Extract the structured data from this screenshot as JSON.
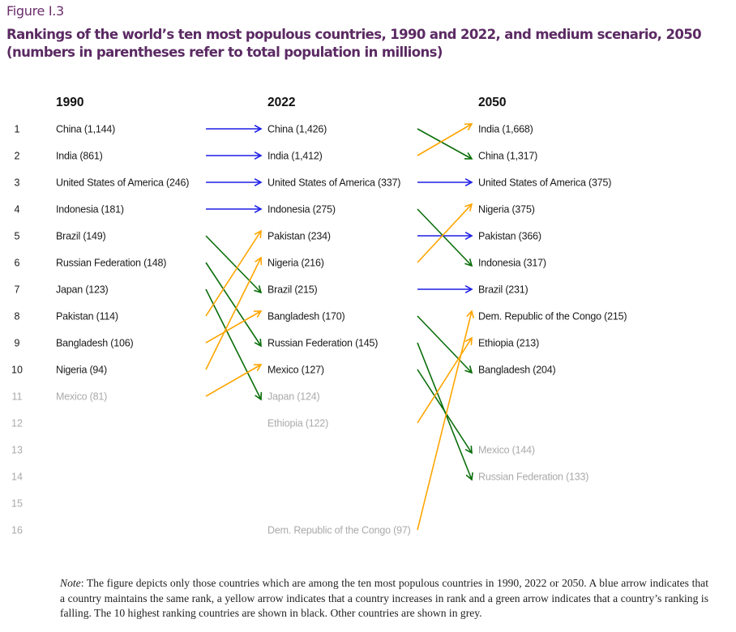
{
  "figure_label": "Figure I.3",
  "title": "Rankings of the world’s ten most populous countries, 1990 and 2022, and medium scenario, 2050 (numbers in parentheses refer to total population in millions)",
  "note": {
    "label": "Note",
    "text": ":  The figure depicts only those countries which are among the ten most populous countries in 1990, 2022 or 2050. A blue arrow indicates that a country maintains the same rank, a yellow arrow indicates that a country increases in rank and a green arrow indicates that a country’s ranking is falling. The 10 highest ranking countries are shown in black. Other countries are shown in grey."
  },
  "colors": {
    "same": "#1f1fe6",
    "up": "#ffa500",
    "down": "#0a6e0a",
    "top10_text": "#1a1a1a",
    "other_text": "#aaaaaa"
  },
  "chart_data": {
    "type": "slope-ranking",
    "title": "Rankings of the world’s ten most populous countries, 1990 and 2022, and medium scenario, 2050",
    "unit": "millions",
    "ranks": [
      1,
      2,
      3,
      4,
      5,
      6,
      7,
      8,
      9,
      10,
      11,
      12,
      13,
      14,
      15,
      16
    ],
    "top_n": 10,
    "columns": [
      {
        "year": "1990",
        "entries": [
          {
            "rank": 1,
            "country": "China",
            "population": "1,144"
          },
          {
            "rank": 2,
            "country": "India",
            "population": "861"
          },
          {
            "rank": 3,
            "country": "United States of America",
            "population": "246"
          },
          {
            "rank": 4,
            "country": "Indonesia",
            "population": "181"
          },
          {
            "rank": 5,
            "country": "Brazil",
            "population": "149"
          },
          {
            "rank": 6,
            "country": "Russian Federation",
            "population": "148"
          },
          {
            "rank": 7,
            "country": "Japan",
            "population": "123"
          },
          {
            "rank": 8,
            "country": "Pakistan",
            "population": "114"
          },
          {
            "rank": 9,
            "country": "Bangladesh",
            "population": "106"
          },
          {
            "rank": 10,
            "country": "Nigeria",
            "population": "94"
          },
          {
            "rank": 11,
            "country": "Mexico",
            "population": "81"
          }
        ]
      },
      {
        "year": "2022",
        "entries": [
          {
            "rank": 1,
            "country": "China",
            "population": "1,426"
          },
          {
            "rank": 2,
            "country": "India",
            "population": "1,412"
          },
          {
            "rank": 3,
            "country": "United States of America",
            "population": "337"
          },
          {
            "rank": 4,
            "country": "Indonesia",
            "population": "275"
          },
          {
            "rank": 5,
            "country": "Pakistan",
            "population": "234"
          },
          {
            "rank": 6,
            "country": "Nigeria",
            "population": "216"
          },
          {
            "rank": 7,
            "country": "Brazil",
            "population": "215"
          },
          {
            "rank": 8,
            "country": "Bangladesh",
            "population": "170"
          },
          {
            "rank": 9,
            "country": "Russian Federation",
            "population": "145"
          },
          {
            "rank": 10,
            "country": "Mexico",
            "population": "127"
          },
          {
            "rank": 11,
            "country": "Japan",
            "population": "124"
          },
          {
            "rank": 12,
            "country": "Ethiopia",
            "population": "122"
          },
          {
            "rank": 16,
            "country": "Dem. Republic of the Congo",
            "population": "97"
          }
        ]
      },
      {
        "year": "2050",
        "entries": [
          {
            "rank": 1,
            "country": "India",
            "population": "1,668"
          },
          {
            "rank": 2,
            "country": "China",
            "population": "1,317"
          },
          {
            "rank": 3,
            "country": "United States of America",
            "population": "375"
          },
          {
            "rank": 4,
            "country": "Nigeria",
            "population": "375"
          },
          {
            "rank": 5,
            "country": "Pakistan",
            "population": "366"
          },
          {
            "rank": 6,
            "country": "Indonesia",
            "population": "317"
          },
          {
            "rank": 7,
            "country": "Brazil",
            "population": "231"
          },
          {
            "rank": 8,
            "country": "Dem. Republic of the Congo",
            "population": "215"
          },
          {
            "rank": 9,
            "country": "Ethiopia",
            "population": "213"
          },
          {
            "rank": 10,
            "country": "Bangladesh",
            "population": "204"
          },
          {
            "rank": 13,
            "country": "Mexico",
            "population": "144"
          },
          {
            "rank": 14,
            "country": "Russian Federation",
            "population": "133"
          }
        ]
      }
    ],
    "transitions": [
      {
        "from": "1990",
        "to": "2022",
        "arrows": [
          {
            "country": "China",
            "from_rank": 1,
            "to_rank": 1,
            "change": "same"
          },
          {
            "country": "India",
            "from_rank": 2,
            "to_rank": 2,
            "change": "same"
          },
          {
            "country": "United States of America",
            "from_rank": 3,
            "to_rank": 3,
            "change": "same"
          },
          {
            "country": "Indonesia",
            "from_rank": 4,
            "to_rank": 4,
            "change": "same"
          },
          {
            "country": "Brazil",
            "from_rank": 5,
            "to_rank": 7,
            "change": "down"
          },
          {
            "country": "Russian Federation",
            "from_rank": 6,
            "to_rank": 9,
            "change": "down"
          },
          {
            "country": "Japan",
            "from_rank": 7,
            "to_rank": 11,
            "change": "down"
          },
          {
            "country": "Pakistan",
            "from_rank": 8,
            "to_rank": 5,
            "change": "up"
          },
          {
            "country": "Bangladesh",
            "from_rank": 9,
            "to_rank": 8,
            "change": "up"
          },
          {
            "country": "Nigeria",
            "from_rank": 10,
            "to_rank": 6,
            "change": "up"
          },
          {
            "country": "Mexico",
            "from_rank": 11,
            "to_rank": 10,
            "change": "up"
          }
        ]
      },
      {
        "from": "2022",
        "to": "2050",
        "arrows": [
          {
            "country": "China",
            "from_rank": 1,
            "to_rank": 2,
            "change": "down"
          },
          {
            "country": "India",
            "from_rank": 2,
            "to_rank": 1,
            "change": "up"
          },
          {
            "country": "United States of America",
            "from_rank": 3,
            "to_rank": 3,
            "change": "same"
          },
          {
            "country": "Indonesia",
            "from_rank": 4,
            "to_rank": 6,
            "change": "down"
          },
          {
            "country": "Pakistan",
            "from_rank": 5,
            "to_rank": 5,
            "change": "same"
          },
          {
            "country": "Nigeria",
            "from_rank": 6,
            "to_rank": 4,
            "change": "up"
          },
          {
            "country": "Brazil",
            "from_rank": 7,
            "to_rank": 7,
            "change": "same"
          },
          {
            "country": "Bangladesh",
            "from_rank": 8,
            "to_rank": 10,
            "change": "down"
          },
          {
            "country": "Russian Federation",
            "from_rank": 9,
            "to_rank": 14,
            "change": "down"
          },
          {
            "country": "Mexico",
            "from_rank": 10,
            "to_rank": 13,
            "change": "down"
          },
          {
            "country": "Ethiopia",
            "from_rank": 12,
            "to_rank": 9,
            "change": "up"
          },
          {
            "country": "Dem. Republic of the Congo",
            "from_rank": 16,
            "to_rank": 8,
            "change": "up"
          }
        ]
      }
    ]
  }
}
